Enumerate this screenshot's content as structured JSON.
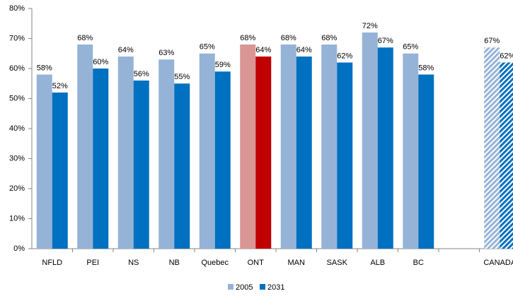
{
  "chart_data": {
    "type": "bar",
    "categories": [
      "NFLD",
      "PEI",
      "NS",
      "NB",
      "Quebec",
      "ONT",
      "MAN",
      "SASK",
      "ALB",
      "BC",
      null,
      "CANADA"
    ],
    "series": [
      {
        "name": "2005",
        "color": "#95b3d7",
        "values": [
          58,
          68,
          64,
          63,
          65,
          68,
          68,
          68,
          72,
          65,
          null,
          67
        ],
        "value_labels": [
          "58%",
          "68%",
          "64%",
          "63%",
          "65%",
          "68%",
          "68%",
          "68%",
          "72%",
          "65%",
          null,
          "67%"
        ]
      },
      {
        "name": "2031",
        "color": "#0070c0",
        "values": [
          52,
          60,
          56,
          55,
          59,
          64,
          64,
          62,
          67,
          58,
          null,
          62
        ],
        "value_labels": [
          "52%",
          "60%",
          "56%",
          "55%",
          "59%",
          "64%",
          "64%",
          "62%",
          "67%",
          "58%",
          null,
          "62%"
        ]
      }
    ],
    "highlight": {
      "index": 5,
      "colors": [
        "#da9694",
        "#c00000"
      ]
    },
    "hatch_index": 11,
    "ylim": [
      0,
      80
    ],
    "yticks": [
      {
        "value": 0,
        "label": "0%"
      },
      {
        "value": 10,
        "label": "10%"
      },
      {
        "value": 20,
        "label": "20%"
      },
      {
        "value": 30,
        "label": "30%"
      },
      {
        "value": 40,
        "label": "40%"
      },
      {
        "value": 50,
        "label": "50%"
      },
      {
        "value": 60,
        "label": "60%"
      },
      {
        "value": 70,
        "label": "70%"
      },
      {
        "value": 80,
        "label": "80%"
      }
    ],
    "grid": false,
    "legend": "bottom"
  }
}
